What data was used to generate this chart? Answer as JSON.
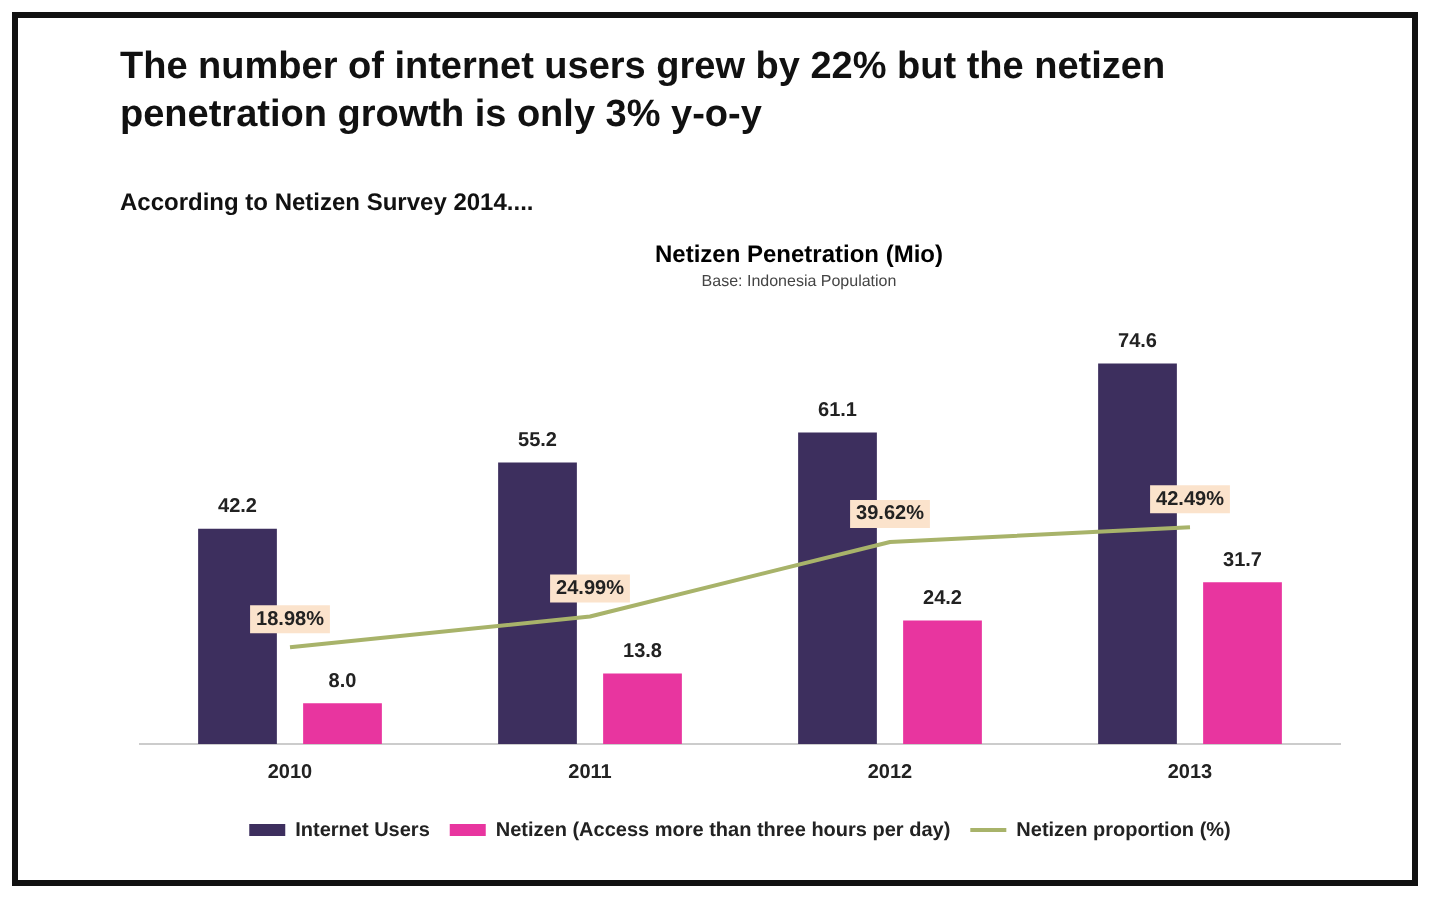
{
  "chart_data": {
    "type": "bar",
    "title": "The number of internet users grew by 22% but the netizen penetration growth is only 3% y-o-y",
    "subtitle": "According to Netizen Survey 2014....",
    "annotations": [
      "Netizen Penetration (Mio)",
      "Base: Indonesia Population"
    ],
    "categories": [
      "2010",
      "2011",
      "2012",
      "2013"
    ],
    "series": [
      {
        "name": "Internet Users",
        "color": "#3d2f5e",
        "values": [
          42.2,
          55.2,
          61.1,
          74.6
        ],
        "value_labels": [
          "42.2",
          "55.2",
          "61.1",
          "74.6"
        ]
      },
      {
        "name": "Netizen (Access more than three hours per day)",
        "color": "#e8359f",
        "values": [
          8.0,
          13.8,
          24.2,
          31.7
        ],
        "value_labels": [
          "8.0",
          "13.8",
          "24.2",
          "31.7"
        ]
      },
      {
        "name": "Netizen proportion (%)",
        "type": "line",
        "color": "#a8b36a",
        "values": [
          18.98,
          24.99,
          39.62,
          42.49
        ],
        "value_labels": [
          "18.98%",
          "24.99%",
          "39.62%",
          "42.49%"
        ]
      }
    ],
    "tick_labels": "x",
    "grid": false,
    "legend": "bottom"
  }
}
